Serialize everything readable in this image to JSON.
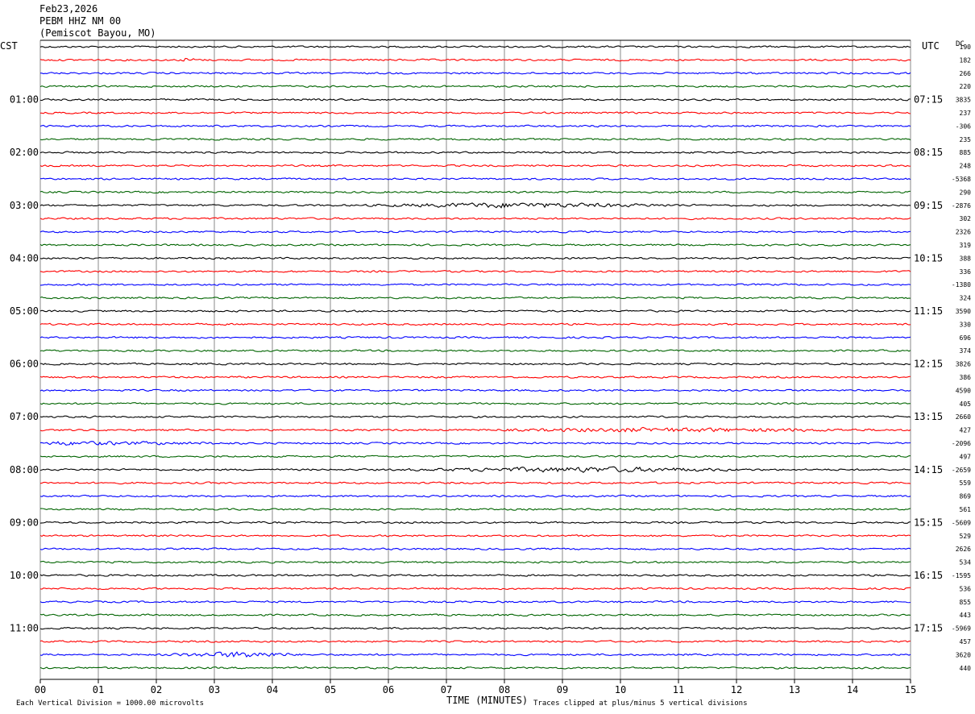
{
  "header": {
    "date": "Feb23,2026",
    "station": "PEBM HHZ NM 00",
    "location": "(Pemiscot Bayou, MO)"
  },
  "left_tz": "CST",
  "right_tz": "UTC",
  "dc_label": "DC",
  "footer": {
    "scale_note": "Each Vertical Division = 1000.00 microvolts",
    "clip_note": "Traces clipped at plus/minus 5 vertical divisions"
  },
  "colors": {
    "cycle": [
      "#000000",
      "#ff0000",
      "#0000ff",
      "#006400"
    ],
    "grid": "#888888"
  },
  "chart_data": {
    "type": "line",
    "title": "",
    "xlabel": "TIME (MINUTES)",
    "x_ticks": [
      "00",
      "01",
      "02",
      "03",
      "04",
      "05",
      "06",
      "07",
      "08",
      "09",
      "10",
      "11",
      "12",
      "13",
      "14",
      "15"
    ],
    "xlim": [
      0,
      15
    ],
    "grid": true,
    "left_hour_labels": [
      "01:00",
      "02:00",
      "03:00",
      "04:00",
      "05:00",
      "06:00",
      "07:00",
      "08:00",
      "09:00",
      "10:00",
      "11:00"
    ],
    "right_hour_labels": [
      "07:15",
      "08:15",
      "09:15",
      "10:15",
      "11:15",
      "12:15",
      "13:15",
      "14:15",
      "15:15",
      "16:15",
      "17:15"
    ],
    "dc_offsets": [
      "190",
      "182",
      "266",
      "220",
      "3835",
      "237",
      "-306",
      "235",
      "885",
      "248",
      "-5368",
      "290",
      "-2876",
      "302",
      "2326",
      "319",
      "388",
      "336",
      "-1380",
      "324",
      "3590",
      "330",
      "696",
      "374",
      "3826",
      "386",
      "4590",
      "405",
      "2660",
      "427",
      "-2096",
      "497",
      "-2659",
      "559",
      "869",
      "561",
      "-5609",
      "529",
      "2626",
      "534",
      "-1595",
      "536",
      "855",
      "443",
      "-5969",
      "457",
      "3620",
      "440"
    ],
    "trace_count": 48,
    "events": [
      {
        "trace": 12,
        "start_min": 5.5,
        "end_min": 11.5,
        "peak_min": 8.0,
        "amp": 3.0
      },
      {
        "trace": 29,
        "start_min": 7.5,
        "end_min": 15.0,
        "peak_min": 10.5,
        "amp": 2.4
      },
      {
        "trace": 32,
        "start_min": 6.0,
        "end_min": 12.5,
        "peak_min": 9.5,
        "amp": 3.2
      },
      {
        "trace": 30,
        "start_min": 0.0,
        "end_min": 4.0,
        "peak_min": 0.3,
        "amp": 2.0
      },
      {
        "trace": 46,
        "start_min": 2.0,
        "end_min": 4.5,
        "peak_min": 3.6,
        "amp": 4.0
      },
      {
        "trace": 1,
        "start_min": 2.4,
        "end_min": 2.8,
        "peak_min": 2.5,
        "amp": 2.5
      }
    ]
  }
}
